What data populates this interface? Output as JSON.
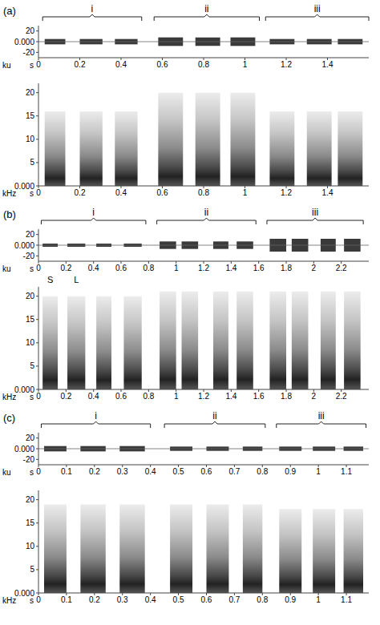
{
  "chart_data": [
    {
      "type": "oscillogram_spectrogram",
      "title": "(a)",
      "groups": [
        {
          "label": "i",
          "start": 0.02,
          "end": 0.5
        },
        {
          "label": "ii",
          "start": 0.56,
          "end": 1.07
        },
        {
          "label": "iii",
          "start": 1.1,
          "end": 1.6
        }
      ],
      "syllables": [
        {
          "start": 0.03,
          "end": 0.13,
          "amplitude": 5,
          "max_frequency": 16
        },
        {
          "start": 0.2,
          "end": 0.31,
          "amplitude": 5,
          "max_frequency": 16
        },
        {
          "start": 0.37,
          "end": 0.48,
          "amplitude": 5,
          "max_frequency": 16
        },
        {
          "start": 0.58,
          "end": 0.7,
          "amplitude": 8,
          "max_frequency": 20
        },
        {
          "start": 0.76,
          "end": 0.88,
          "amplitude": 8,
          "max_frequency": 20
        },
        {
          "start": 0.93,
          "end": 1.05,
          "amplitude": 8,
          "max_frequency": 20
        },
        {
          "start": 1.12,
          "end": 1.24,
          "amplitude": 5,
          "max_frequency": 16
        },
        {
          "start": 1.3,
          "end": 1.42,
          "amplitude": 5,
          "max_frequency": 16
        },
        {
          "start": 1.45,
          "end": 1.57,
          "amplitude": 5,
          "max_frequency": 16
        }
      ],
      "oscillogram": {
        "y_label": "ku",
        "x_label": "s",
        "xlim": [
          0,
          1.6
        ],
        "xticks": [
          0,
          0.2,
          0.4,
          0.6,
          0.8,
          1,
          1.2,
          1.4
        ],
        "ylim": [
          -30,
          30
        ],
        "yticks": [
          -20,
          {
            "value": 0,
            "label": "0.000"
          },
          20
        ]
      },
      "spectrogram": {
        "y_label": "kHz",
        "x_label": "s",
        "xlim": [
          0,
          1.6
        ],
        "xticks": [
          0,
          0.2,
          0.4,
          0.6,
          0.8,
          1,
          1.2,
          1.4
        ],
        "ylim": [
          0,
          22
        ],
        "yticks": [
          {
            "value": 0,
            "label": "0.000"
          },
          5,
          10,
          15,
          20
        ]
      },
      "annotations": []
    },
    {
      "type": "oscillogram_spectrogram",
      "title": "(b)",
      "groups": [
        {
          "label": "i",
          "start": 0.02,
          "end": 0.78
        },
        {
          "label": "ii",
          "start": 0.86,
          "end": 1.58
        },
        {
          "label": "iii",
          "start": 1.66,
          "end": 2.36
        }
      ],
      "syllables": [
        {
          "start": 0.03,
          "end": 0.14,
          "amplitude": 3,
          "max_frequency": 20
        },
        {
          "start": 0.21,
          "end": 0.34,
          "amplitude": 3,
          "max_frequency": 20
        },
        {
          "start": 0.42,
          "end": 0.53,
          "amplitude": 3,
          "max_frequency": 20
        },
        {
          "start": 0.62,
          "end": 0.75,
          "amplitude": 3,
          "max_frequency": 20
        },
        {
          "start": 0.88,
          "end": 1.0,
          "amplitude": 7,
          "max_frequency": 21
        },
        {
          "start": 1.04,
          "end": 1.16,
          "amplitude": 7,
          "max_frequency": 21
        },
        {
          "start": 1.27,
          "end": 1.38,
          "amplitude": 7,
          "max_frequency": 21
        },
        {
          "start": 1.44,
          "end": 1.56,
          "amplitude": 7,
          "max_frequency": 21
        },
        {
          "start": 1.68,
          "end": 1.8,
          "amplitude": 12,
          "max_frequency": 21
        },
        {
          "start": 1.84,
          "end": 1.96,
          "amplitude": 12,
          "max_frequency": 21
        },
        {
          "start": 2.05,
          "end": 2.16,
          "amplitude": 12,
          "max_frequency": 21
        },
        {
          "start": 2.22,
          "end": 2.34,
          "amplitude": 12,
          "max_frequency": 21
        }
      ],
      "oscillogram": {
        "y_label": "ku",
        "x_label": "s",
        "xlim": [
          0,
          2.4
        ],
        "xticks": [
          0,
          0.2,
          0.4,
          0.6,
          0.8,
          1,
          1.2,
          1.4,
          1.6,
          1.8,
          2,
          2.2
        ],
        "ylim": [
          -30,
          30
        ],
        "yticks": [
          -20,
          {
            "value": 0,
            "label": "0.000"
          },
          20
        ]
      },
      "spectrogram": {
        "y_label": "kHz",
        "x_label": "s",
        "xlim": [
          0,
          2.4
        ],
        "xticks": [
          0,
          0.2,
          0.4,
          0.6,
          0.8,
          1,
          1.2,
          1.4,
          1.6,
          1.8,
          2,
          2.2
        ],
        "ylim": [
          0,
          22
        ],
        "yticks": [
          {
            "value": 0,
            "label": "0.000"
          },
          5,
          10,
          15,
          20
        ]
      },
      "annotations": [
        {
          "text": "S",
          "x": 0.085,
          "y": 22
        },
        {
          "text": "L",
          "x": 0.275,
          "y": 22
        }
      ]
    },
    {
      "type": "oscillogram_spectrogram",
      "title": "(c)",
      "groups": [
        {
          "label": "i",
          "start": 0.01,
          "end": 0.4
        },
        {
          "label": "ii",
          "start": 0.45,
          "end": 0.81
        },
        {
          "label": "iii",
          "start": 0.85,
          "end": 1.17
        }
      ],
      "syllables": [
        {
          "start": 0.02,
          "end": 0.1,
          "amplitude": 5,
          "max_frequency": 19
        },
        {
          "start": 0.15,
          "end": 0.24,
          "amplitude": 5,
          "max_frequency": 19
        },
        {
          "start": 0.29,
          "end": 0.38,
          "amplitude": 5,
          "max_frequency": 19
        },
        {
          "start": 0.47,
          "end": 0.55,
          "amplitude": 4,
          "max_frequency": 19
        },
        {
          "start": 0.6,
          "end": 0.68,
          "amplitude": 4,
          "max_frequency": 19
        },
        {
          "start": 0.73,
          "end": 0.8,
          "amplitude": 4,
          "max_frequency": 19
        },
        {
          "start": 0.86,
          "end": 0.94,
          "amplitude": 4,
          "max_frequency": 18
        },
        {
          "start": 0.98,
          "end": 1.06,
          "amplitude": 4,
          "max_frequency": 18
        },
        {
          "start": 1.09,
          "end": 1.16,
          "amplitude": 4,
          "max_frequency": 18
        }
      ],
      "oscillogram": {
        "y_label": "ku",
        "x_label": "s",
        "xlim": [
          0,
          1.18
        ],
        "xticks": [
          0,
          0.1,
          0.2,
          0.3,
          0.4,
          0.5,
          0.6,
          0.7,
          0.8,
          0.9,
          1,
          1.1
        ],
        "ylim": [
          -30,
          30
        ],
        "yticks": [
          -20,
          {
            "value": 0,
            "label": "0.000"
          },
          20
        ]
      },
      "spectrogram": {
        "y_label": "kHz",
        "x_label": "s",
        "xlim": [
          0,
          1.18
        ],
        "xticks": [
          0,
          0.1,
          0.2,
          0.3,
          0.4,
          0.5,
          0.6,
          0.7,
          0.8,
          0.9,
          1,
          1.1
        ],
        "ylim": [
          0,
          22
        ],
        "yticks": [
          {
            "value": 0,
            "label": "0.000"
          },
          5,
          10,
          15,
          20
        ]
      },
      "annotations": []
    }
  ]
}
